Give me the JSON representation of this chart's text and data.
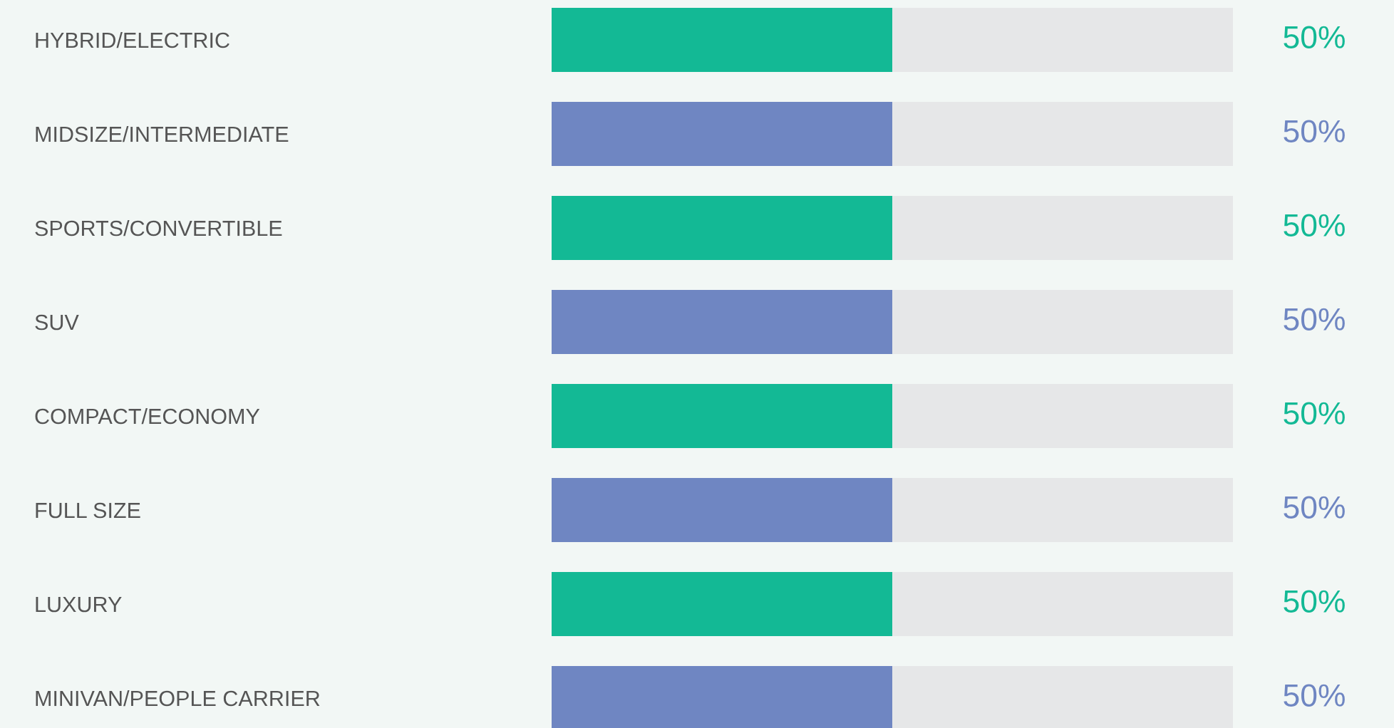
{
  "chart_data": {
    "type": "bar",
    "orientation": "horizontal",
    "stacked": true,
    "tick_labels": "y",
    "grid": false,
    "legend": false,
    "categories": [
      "HYBRID/ELECTRIC",
      "MIDSIZE/INTERMEDIATE",
      "SPORTS/CONVERTIBLE",
      "SUV",
      "COMPACT/ECONOMY",
      "FULL SIZE",
      "LUXURY",
      "MINIVAN/PEOPLE CARRIER"
    ],
    "xlim": [
      0,
      100
    ],
    "series": [
      {
        "colors": [
          "#13b995",
          "#6f86c2",
          "#13b995",
          "#6f86c2",
          "#13b995",
          "#6f86c2",
          "#13b995",
          "#6f86c2"
        ],
        "values": [
          50,
          50,
          50,
          50,
          50,
          50,
          50,
          50
        ],
        "value_labels": [
          "50%",
          "50%",
          "50%",
          "50%",
          "50%",
          "50%",
          "50%",
          "50%"
        ]
      },
      {
        "color": "#e6e7e8",
        "values": [
          50,
          50,
          50,
          50,
          50,
          50,
          50,
          50
        ]
      }
    ]
  }
}
